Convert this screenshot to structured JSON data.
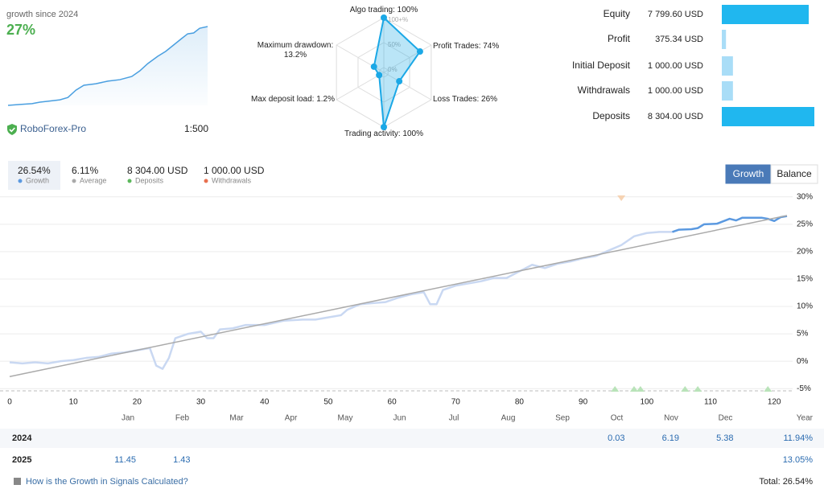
{
  "header": {
    "title": "growth since 2024",
    "growth": "27%",
    "broker": "RoboForex-Pro",
    "leverage": "1:500"
  },
  "chart_data": [
    {
      "type": "sparkline",
      "color": "#4a9fe0",
      "x": [
        0,
        6,
        12,
        16,
        20,
        26,
        30,
        34,
        38,
        44,
        50,
        56,
        62,
        66,
        70,
        75,
        79,
        83,
        87,
        90,
        93,
        96,
        100
      ],
      "values": [
        0,
        0.3,
        0.6,
        1.1,
        1.4,
        1.9,
        2.7,
        5.2,
        6.9,
        7.4,
        8.3,
        8.8,
        9.9,
        11.8,
        14.3,
        16.8,
        18.5,
        20.7,
        22.9,
        24.5,
        24.8,
        26.4,
        27.0
      ]
    },
    {
      "type": "radar",
      "color": "#1ba8e6",
      "categories": [
        "Algo trading:",
        "Profit Trades:",
        "Loss Trades:",
        "Trading activity:",
        "Max deposit load:",
        "Maximum drawdown:"
      ],
      "values": [
        100,
        74,
        26,
        100,
        1.2,
        13.2
      ],
      "value_labels": [
        "100%",
        "74%",
        "26%",
        "100%",
        "1.2%",
        "13.2%"
      ],
      "rlim": [
        0,
        100
      ],
      "rticks": [
        {
          "value": 0,
          "label": "0%"
        },
        {
          "value": 50,
          "label": "50%"
        },
        {
          "value": 100,
          "label": "100+%"
        }
      ]
    },
    {
      "type": "hbar",
      "categories": [
        "Equity",
        "Profit",
        "Initial Deposit",
        "Withdrawals",
        "Deposits"
      ],
      "values": [
        7799.6,
        375.34,
        1000,
        1000,
        8304
      ],
      "value_labels": [
        "7 799.60 USD",
        "375.34 USD",
        "1 000.00 USD",
        "1 000.00 USD",
        "8 304.00 USD"
      ],
      "colors": [
        "#20b7ef",
        "#a9ddf7",
        "#a9ddf7",
        "#a9ddf7",
        "#20b7ef"
      ]
    },
    {
      "type": "line",
      "xlim": [
        0,
        122
      ],
      "xticks": [
        0,
        10,
        20,
        30,
        40,
        50,
        60,
        70,
        80,
        90,
        100,
        110,
        120
      ],
      "ylim": [
        -6,
        31
      ],
      "yticks": [
        {
          "value": 30,
          "label": "30%"
        },
        {
          "value": 25,
          "label": "25%"
        },
        {
          "value": 20,
          "label": "20%"
        },
        {
          "value": 15,
          "label": "15%"
        },
        {
          "value": 10,
          "label": "10%"
        },
        {
          "value": 5,
          "label": "5%"
        },
        {
          "value": 0,
          "label": "0%"
        },
        {
          "value": -5,
          "label": "-5%"
        }
      ],
      "grid": true,
      "series": [
        {
          "color": "#c9d8f2",
          "x": [
            0,
            2,
            4,
            6,
            8,
            10,
            12,
            14,
            16,
            18,
            20,
            22,
            23,
            24,
            25,
            26,
            28,
            30,
            31,
            32,
            33,
            35,
            37,
            40,
            43,
            46,
            48,
            50,
            52,
            53,
            55,
            57,
            59,
            61,
            63,
            65,
            66,
            67,
            68,
            70,
            72,
            74,
            76,
            78,
            80,
            82,
            84,
            86,
            88,
            90,
            92,
            94,
            96,
            98,
            100,
            102,
            104
          ],
          "values": [
            -0.2,
            -0.4,
            -0.2,
            -0.4,
            0,
            0.2,
            0.6,
            0.8,
            1.4,
            1.6,
            2.0,
            2.4,
            -0.8,
            -1.4,
            0.6,
            4.2,
            5.0,
            5.4,
            4.2,
            4.2,
            5.8,
            6.0,
            6.6,
            6.6,
            7.4,
            7.6,
            7.6,
            8.0,
            8.4,
            9.4,
            10.4,
            10.6,
            10.8,
            11.6,
            12.2,
            12.6,
            10.4,
            10.4,
            13.0,
            13.8,
            14.2,
            14.6,
            15.2,
            15.2,
            16.4,
            17.6,
            17.0,
            17.8,
            18.2,
            18.8,
            19.2,
            20.2,
            21.2,
            22.8,
            23.4,
            23.6,
            23.6
          ]
        },
        {
          "color": "#5b99e0",
          "x": [
            104,
            105,
            107,
            108,
            109,
            111,
            113,
            114,
            115,
            118,
            119,
            120,
            121,
            122
          ],
          "values": [
            23.6,
            24.0,
            24.1,
            24.3,
            25.0,
            25.1,
            26.0,
            25.7,
            26.2,
            26.2,
            26.0,
            25.6,
            26.3,
            26.5
          ]
        },
        {
          "color": "#aaaaaa",
          "x": [
            0,
            122
          ],
          "values": [
            -2.8,
            26.6
          ]
        }
      ],
      "deposit_markers": {
        "color": "#b9e3b9",
        "x": [
          95,
          98,
          99,
          106,
          108,
          119
        ]
      },
      "withdrawal_markers": {
        "color": "#f6d3b3",
        "x": [
          96
        ]
      }
    }
  ],
  "stats": [
    {
      "value": "26.54%",
      "label": "Growth",
      "color": "#5b99e0"
    },
    {
      "value": "6.11%",
      "label": "Average",
      "color": "#aaaaaa"
    },
    {
      "value": "8 304.00 USD",
      "label": "Deposits",
      "color": "#5cb85c"
    },
    {
      "value": "1 000.00 USD",
      "label": "Withdrawals",
      "color": "#e8704f"
    }
  ],
  "buttons": [
    "Growth",
    "Balance"
  ],
  "table": {
    "header": [
      "Jan",
      "Feb",
      "Mar",
      "Apr",
      "May",
      "Jun",
      "Jul",
      "Aug",
      "Sep",
      "Oct",
      "Nov",
      "Dec",
      "Year"
    ],
    "rows": [
      {
        "label": "2024",
        "cells": [
          null,
          null,
          null,
          null,
          null,
          null,
          null,
          null,
          null,
          "0.03",
          "6.19",
          "5.38",
          "11.94%"
        ]
      },
      {
        "label": "2025",
        "cells": [
          "11.45",
          "1.43",
          null,
          null,
          null,
          null,
          null,
          null,
          null,
          null,
          null,
          null,
          "13.05%"
        ]
      }
    ]
  },
  "footer": {
    "link": "How is the Growth in Signals Calculated?",
    "total": "Total: 26.54%"
  }
}
